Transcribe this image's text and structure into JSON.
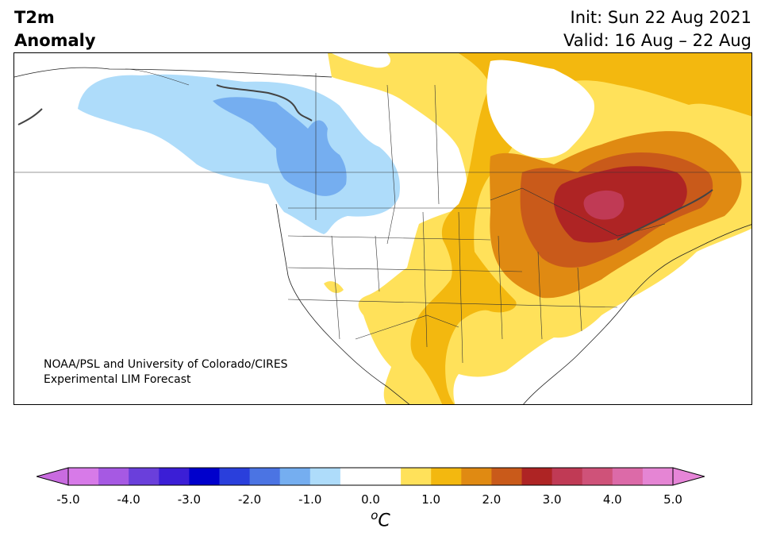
{
  "header": {
    "title_line1": "T2m",
    "title_line2": "Anomaly",
    "init_text": "Init: Sun 22 Aug 2021",
    "valid_text": "Valid: 16 Aug – 22 Aug"
  },
  "map": {
    "region": "North America",
    "credit_line1": "NOAA/PSL and University of Colorado/CIRES",
    "credit_line2": "Experimental LIM Forecast"
  },
  "legend": {
    "unit_base": "o",
    "unit_letter": "C",
    "ticks": [
      "-5.0",
      "-4.0",
      "-3.0",
      "-2.0",
      "-1.0",
      "0.0",
      "1.0",
      "2.0",
      "3.0",
      "4.0",
      "5.0"
    ],
    "bins": [
      "#d77ae8",
      "#a659e3",
      "#6a3fdb",
      "#3b1ed6",
      "#0000cc",
      "#2a3fdc",
      "#4b74e3",
      "#75aef0",
      "#aedcfa",
      "#ffffff",
      "#ffffff",
      "#ffe15a",
      "#f3b80f",
      "#e08a12",
      "#c95a1a",
      "#ae2424",
      "#c03a55",
      "#cf5279",
      "#dc6aa8",
      "#e585d4"
    ],
    "extend_low_color": "#c96be0",
    "extend_high_color": "#e685d8"
  },
  "colors": {
    "cold_light": "#aedcfa",
    "cold_mid": "#75aef0",
    "warm_light": "#ffe15a",
    "warm_mid": "#f3b80f",
    "warm_orange": "#e08a12",
    "warm_dark_orange": "#c95a1a",
    "warm_red": "#ae2424",
    "warm_pink": "#c03a55"
  }
}
